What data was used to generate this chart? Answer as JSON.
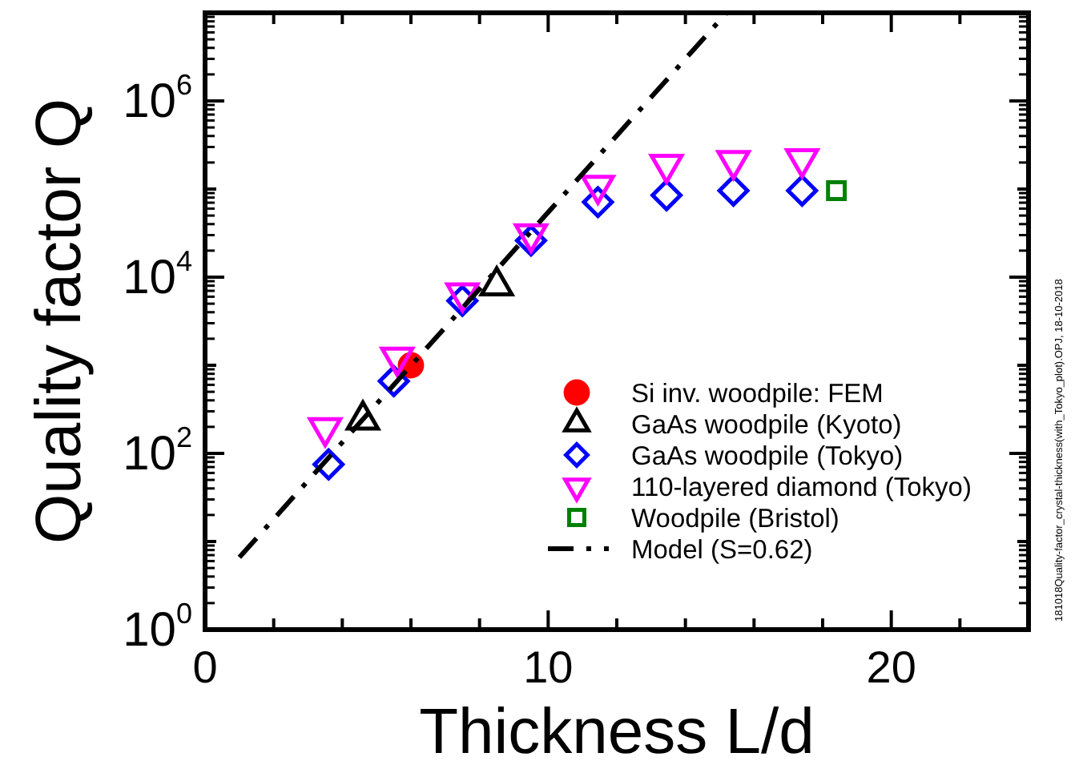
{
  "chart_data": {
    "type": "scatter",
    "xlabel": "Thickness L/d",
    "ylabel": "Quality factor Q",
    "log": "y",
    "grid": false,
    "legend": "bottom right",
    "xlim": [
      0,
      24
    ],
    "xticks": [
      0,
      {
        "value": 2,
        "label": null
      },
      {
        "value": 4,
        "label": null
      },
      {
        "value": 6,
        "label": null
      },
      {
        "value": 8,
        "label": null
      },
      10,
      {
        "value": 12,
        "label": null
      },
      {
        "value": 14,
        "label": null
      },
      {
        "value": 16,
        "label": null
      },
      {
        "value": 18,
        "label": null
      },
      20,
      {
        "value": 22,
        "label": null
      }
    ],
    "ylim": [
      1,
      10000000
    ],
    "yticks": [
      {
        "value": 1,
        "label": "10$^{0}$"
      },
      {
        "value": 10,
        "label": null
      },
      {
        "value": 100,
        "label": "10$^{2}$"
      },
      {
        "value": 1000,
        "label": null
      },
      {
        "value": 10000,
        "label": "10$^{4}$"
      },
      {
        "value": 100000,
        "label": null
      },
      {
        "value": 1000000,
        "label": "10$^{6}$"
      },
      {
        "value": 10000000,
        "label": null
      }
    ],
    "annotations": [
      "181018Quality-factor_crystal-thickness(with_Tokyo_plot).OPJ, 18-10-2018"
    ],
    "series": [
      {
        "name": "Si inv. woodpile: FEM",
        "marker": "circle",
        "color": "#ff0000",
        "x": [
          6.0
        ],
        "values": [
          1000
        ]
      },
      {
        "name": "GaAs woodpile (Kyoto)",
        "marker": "triangle",
        "color": "#000000",
        "x": [
          4.6,
          8.5
        ],
        "values": [
          240,
          8000
        ]
      },
      {
        "name": "GaAs woodpile (Tokyo)",
        "marker": "diamond",
        "color": "#0000ff",
        "x": [
          3.6,
          5.5,
          7.5,
          9.5,
          11.45,
          13.45,
          15.4,
          17.4
        ],
        "values": [
          75,
          660,
          5400,
          26000,
          71000,
          85000,
          96000,
          96000
        ]
      },
      {
        "name": "110-layered diamond (Tokyo)",
        "marker": "triangle-down",
        "color": "#ff00ff",
        "x": [
          3.5,
          5.6,
          7.5,
          9.5,
          11.45,
          13.45,
          15.4,
          17.4
        ],
        "values": [
          195,
          1230,
          6600,
          31000,
          110000,
          190000,
          210000,
          220000
        ]
      },
      {
        "name": "Woodpile (Bristol)",
        "marker": "square",
        "color": "#008000",
        "x": [
          18.4
        ],
        "values": [
          96000
        ]
      },
      {
        "name": "Model (S=0.62)",
        "type": "line",
        "marker": "none",
        "line_style": "dashdot",
        "color": "#000000",
        "x": [
          1,
          15.2
        ],
        "values": [
          6.6,
          10000000
        ]
      }
    ]
  }
}
